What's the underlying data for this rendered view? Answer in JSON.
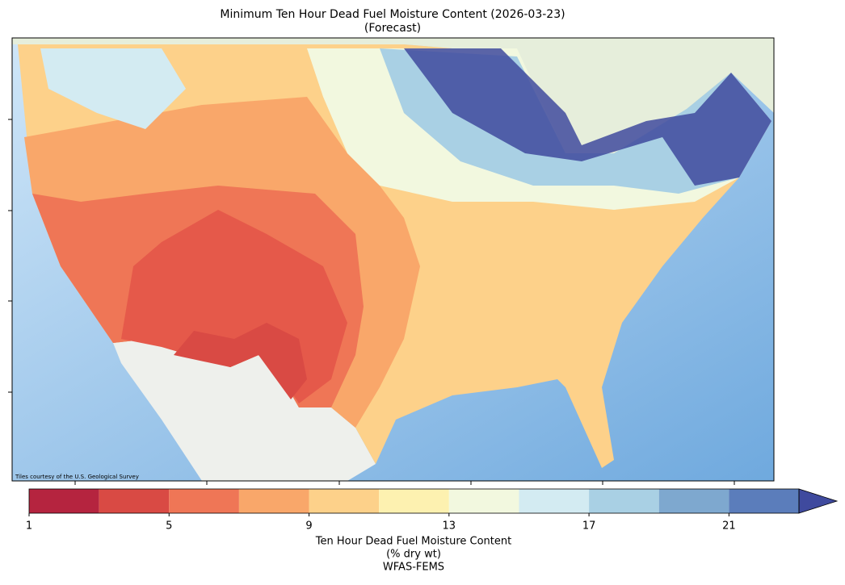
{
  "map": {
    "title": [
      "Minimum Ten Hour Dead Fuel Moisture Content (2026-03-23)",
      "(Forecast)"
    ],
    "attribution": "Tiles courtesy of the U.S. Geological Survey",
    "colorbar": {
      "boundaries": [
        1,
        3,
        5,
        7,
        9,
        11,
        13,
        15,
        17,
        19,
        21,
        23
      ],
      "colors": [
        "#b5243f",
        "#d94a44",
        "#ef7656",
        "#f9a76a",
        "#fdd18a",
        "#fdf1b0",
        "#f2f8df",
        "#d3ebf2",
        "#a9d0e4",
        "#7ea8cf",
        "#5b7dbb"
      ],
      "extend_color": "#3f4a9e",
      "ticks": [
        1,
        5,
        9,
        13,
        17,
        21
      ],
      "label": [
        "Ten Hour Dead Fuel Moisture Content",
        "(% dry wt)",
        "WFAS-FEMS"
      ]
    }
  }
}
